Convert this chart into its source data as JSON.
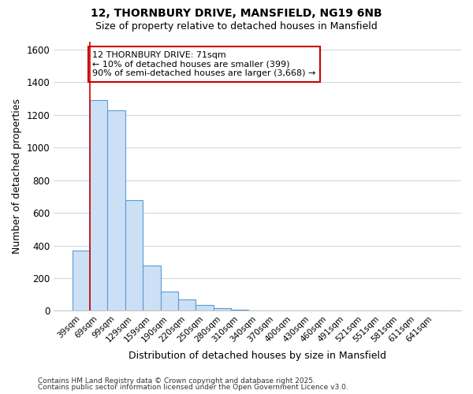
{
  "title": "12, THORNBURY DRIVE, MANSFIELD, NG19 6NB",
  "subtitle": "Size of property relative to detached houses in Mansfield",
  "xlabel": "Distribution of detached houses by size in Mansfield",
  "ylabel": "Number of detached properties",
  "categories": [
    "39sqm",
    "69sqm",
    "99sqm",
    "129sqm",
    "159sqm",
    "190sqm",
    "220sqm",
    "250sqm",
    "280sqm",
    "310sqm",
    "340sqm",
    "370sqm",
    "400sqm",
    "430sqm",
    "460sqm",
    "491sqm",
    "521sqm",
    "551sqm",
    "581sqm",
    "611sqm",
    "641sqm"
  ],
  "values": [
    370,
    1290,
    1230,
    680,
    275,
    120,
    70,
    35,
    15,
    5,
    3,
    1,
    1,
    0,
    0,
    0,
    0,
    0,
    0,
    0,
    0
  ],
  "bar_color": "#cce0f5",
  "bar_edge_color": "#5b9bd5",
  "annotation_line1": "12 THORNBURY DRIVE: 71sqm",
  "annotation_line2": "← 10% of detached houses are smaller (399)",
  "annotation_line3": "90% of semi-detached houses are larger (3,668) →",
  "annotation_box_color": "#ffffff",
  "annotation_box_edge_color": "#cc0000",
  "red_line_bar_index": 1,
  "ylim": [
    0,
    1650
  ],
  "yticks": [
    0,
    200,
    400,
    600,
    800,
    1000,
    1200,
    1400,
    1600
  ],
  "background_color": "#ffffff",
  "grid_color": "#d0d8e8",
  "footer1": "Contains HM Land Registry data © Crown copyright and database right 2025.",
  "footer2": "Contains public sector information licensed under the Open Government Licence v3.0."
}
